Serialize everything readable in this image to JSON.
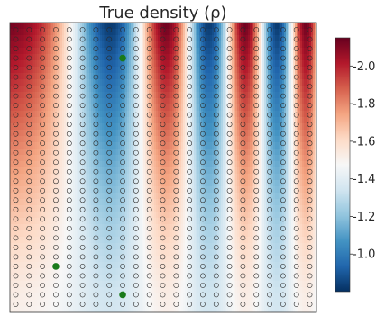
{
  "chart_data": {
    "type": "heatmap",
    "title": "True density (ρ)",
    "colormap": "RdBu_r",
    "color_range": [
      0.8,
      2.15
    ],
    "colorbar_ticks": [
      1.0,
      1.2,
      1.4,
      1.6,
      1.8,
      2.0
    ],
    "colorbar_tick_labels": [
      "1.0",
      "1.2",
      "1.4",
      "1.6",
      "1.8",
      "2.0"
    ],
    "grid_points": {
      "columns": 23,
      "rows": 30,
      "marker": "open-circle"
    },
    "highlighted_points": [
      {
        "col": 8,
        "row": 3,
        "color": "#1a7a1a"
      },
      {
        "col": 3,
        "row": 25,
        "color": "#1a7a1a"
      },
      {
        "col": 8,
        "row": 28,
        "color": "#1a7a1a"
      }
    ],
    "grid": false
  }
}
